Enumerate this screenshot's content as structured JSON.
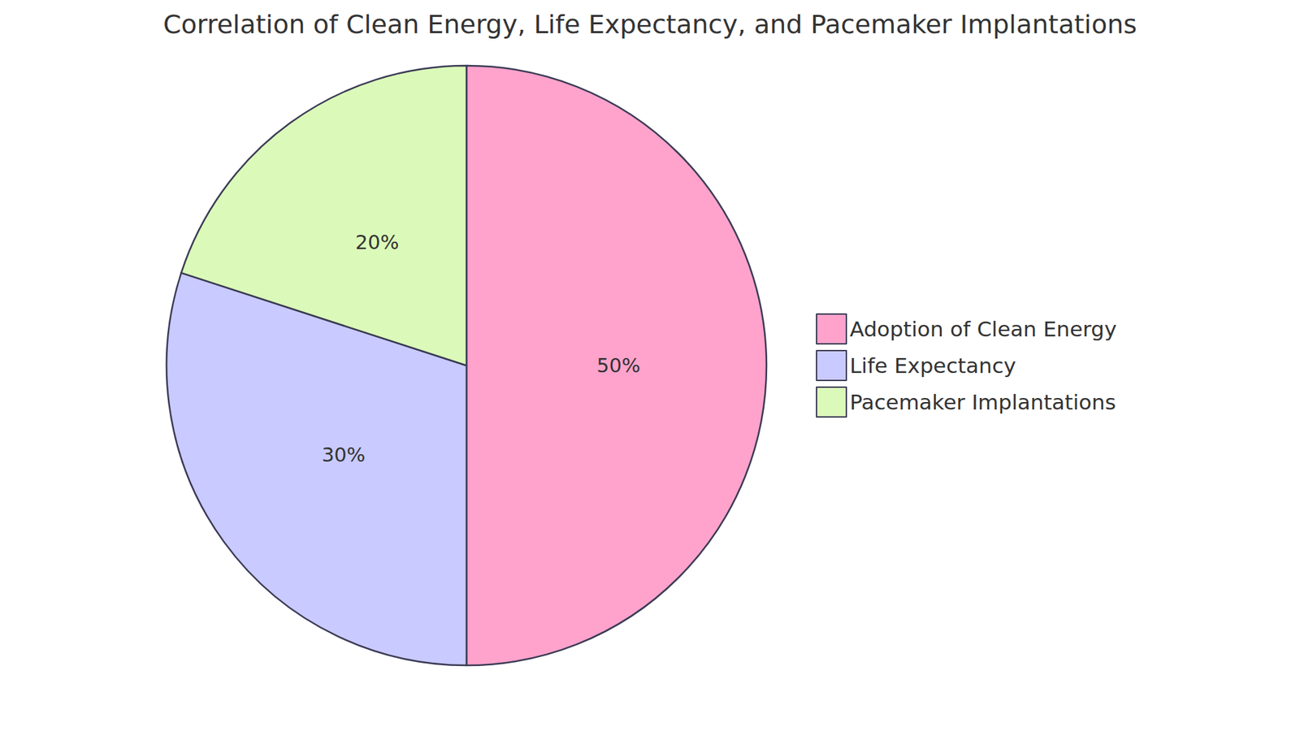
{
  "chart_data": {
    "type": "pie",
    "title": "Correlation of Clean Energy, Life Expectancy, and Pacemaker Implantations",
    "categories": [
      "Adoption of Clean Energy",
      "Life Expectancy",
      "Pacemaker Implantations"
    ],
    "values": [
      50,
      30,
      20
    ],
    "value_labels": [
      "50%",
      "30%",
      "20%"
    ],
    "colors": [
      "#ffa3cc",
      "#c9caff",
      "#dbfab9"
    ],
    "data_labels": true,
    "legend": "right"
  }
}
